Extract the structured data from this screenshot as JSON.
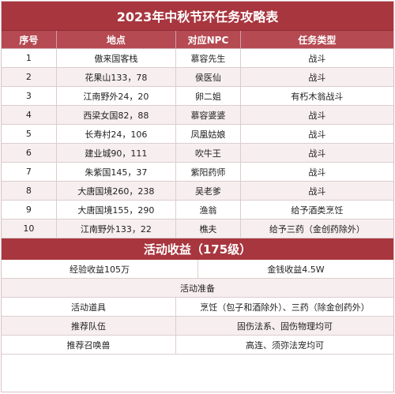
{
  "title": "2023年中秋节环任务攻略表",
  "headers": [
    "序号",
    "地点",
    "对应NPC",
    "任务类型"
  ],
  "rows": [
    {
      "no": "1",
      "place": "傲来国客栈",
      "npc": "慕容先生",
      "type": "战斗"
    },
    {
      "no": "2",
      "place": "花果山133，78",
      "npc": "侯医仙",
      "type": "战斗"
    },
    {
      "no": "3",
      "place": "江南野外24，20",
      "npc": "卵二姐",
      "type": "有朽木翁战斗"
    },
    {
      "no": "4",
      "place": "西梁女国82，88",
      "npc": "慕容婆婆",
      "type": "战斗"
    },
    {
      "no": "5",
      "place": "长寿村24，106",
      "npc": "凤凰姑娘",
      "type": "战斗"
    },
    {
      "no": "6",
      "place": "建业城90，111",
      "npc": "吹牛王",
      "type": "战斗"
    },
    {
      "no": "7",
      "place": "朱紫国145，37",
      "npc": "紫阳药师",
      "type": "战斗"
    },
    {
      "no": "8",
      "place": "大唐国境260，238",
      "npc": "吴老爹",
      "type": "战斗"
    },
    {
      "no": "9",
      "place": "大唐国境155，290",
      "npc": "渔翁",
      "type": "给予酒类烹饪"
    },
    {
      "no": "10",
      "place": "江南野外133，22",
      "npc": "樵夫",
      "type": "给予三药（金创药除外）"
    }
  ],
  "rewards": {
    "title": "活动收益（175级）",
    "exp": "经验收益105万",
    "money": "金钱收益4.5W"
  },
  "prep": {
    "title": "活动准备",
    "items": [
      {
        "label": "活动道具",
        "value": "烹饪（包子和酒除外）、三药（除金创药外）"
      },
      {
        "label": "推荐队伍",
        "value": "固伤法系、固伤物理均可"
      },
      {
        "label": "推荐召唤兽",
        "value": "高连、须弥法宠均可"
      }
    ]
  }
}
